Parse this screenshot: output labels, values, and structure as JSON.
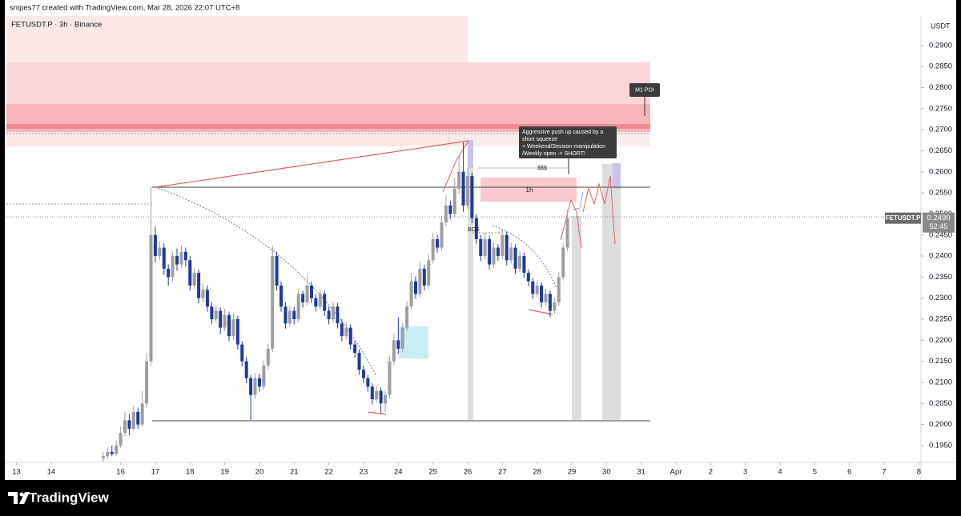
{
  "header": {
    "credit": "snipes77 created with TradingView.com, Mar 28, 2026 22:07 UTC+8",
    "symbol": "FETUSDT.P · 3h · Binance"
  },
  "footer": {
    "brand": "TradingView"
  },
  "chart_data": {
    "type": "candlestick",
    "currency": "USDT",
    "up_color": "#9e9e9e",
    "down_color": "#1e3a9e",
    "xlim": [
      12.71,
      39.06
    ],
    "ylim": [
      0.191,
      0.297
    ],
    "xticks": [
      13,
      14,
      16,
      17,
      18,
      19,
      20,
      21,
      22,
      23,
      24,
      25,
      26,
      27,
      28,
      29,
      30,
      31,
      {
        "value": 32,
        "label": "Apr"
      },
      {
        "value": 33,
        "label": "2"
      },
      {
        "value": 34,
        "label": "3"
      },
      {
        "value": 35,
        "label": "4"
      },
      {
        "value": 36,
        "label": "5"
      },
      {
        "value": 37,
        "label": "6"
      },
      {
        "value": 38,
        "label": "7"
      },
      {
        "value": 39,
        "label": "8"
      }
    ],
    "yticks": [
      {
        "value": 0.195,
        "label": "0.1950"
      },
      {
        "value": 0.2,
        "label": "0.2000"
      },
      {
        "value": 0.205,
        "label": "0.2050"
      },
      {
        "value": 0.21,
        "label": "0.2100"
      },
      {
        "value": 0.215,
        "label": "0.2150"
      },
      {
        "value": 0.22,
        "label": "0.2200"
      },
      {
        "value": 0.225,
        "label": "0.2250"
      },
      {
        "value": 0.23,
        "label": "0.2300"
      },
      {
        "value": 0.235,
        "label": "0.2350"
      },
      {
        "value": 0.24,
        "label": "0.2400"
      },
      {
        "value": 0.245,
        "label": "0.2450"
      },
      {
        "value": 0.25,
        "label": "0.2500"
      },
      {
        "value": 0.255,
        "label": "0.2550"
      },
      {
        "value": 0.26,
        "label": "0.2600"
      },
      {
        "value": 0.265,
        "label": "0.2650"
      },
      {
        "value": 0.27,
        "label": "0.2700"
      },
      {
        "value": 0.275,
        "label": "0.2750"
      },
      {
        "value": 0.28,
        "label": "0.2800"
      },
      {
        "value": 0.285,
        "label": "0.2850"
      },
      {
        "value": 0.29,
        "label": "0.2900"
      }
    ],
    "price_tag": {
      "symbol": "FETUSDT.P",
      "value": 0.249,
      "label": "0.2490",
      "countdown": "52:45"
    },
    "annotations": {
      "poi": "M1 POI",
      "note": [
        "Aggressive push up caused by a",
        "short squeeze",
        "+ Weekend/Session manipulation",
        "/Weekly open -> SHORT!"
      ],
      "liquidity": "$$$",
      "zone": "1h",
      "bos": "BOS"
    },
    "x": [
      15.5,
      15.625,
      15.75,
      15.875,
      16,
      16.125,
      16.25,
      16.375,
      16.5,
      16.625,
      16.75,
      16.875,
      17,
      17.125,
      17.25,
      17.375,
      17.5,
      17.625,
      17.75,
      17.875,
      18,
      18.125,
      18.25,
      18.375,
      18.5,
      18.625,
      18.75,
      18.875,
      19,
      19.125,
      19.25,
      19.375,
      19.5,
      19.625,
      19.75,
      19.875,
      20,
      20.125,
      20.25,
      20.375,
      20.5,
      20.625,
      20.75,
      20.875,
      21,
      21.125,
      21.25,
      21.375,
      21.5,
      21.625,
      21.75,
      21.875,
      22,
      22.125,
      22.25,
      22.375,
      22.5,
      22.625,
      22.75,
      22.875,
      23,
      23.125,
      23.25,
      23.375,
      23.5,
      23.625,
      23.75,
      23.875,
      24,
      24.125,
      24.25,
      24.375,
      24.5,
      24.625,
      24.75,
      24.875,
      25,
      25.125,
      25.25,
      25.375,
      25.5,
      25.625,
      25.75,
      25.875,
      26,
      26.125,
      26.25,
      26.375,
      26.5,
      26.625,
      26.75,
      26.875,
      27,
      27.125,
      27.25,
      27.375,
      27.5,
      27.625,
      27.75,
      27.875,
      28,
      28.125,
      28.25,
      28.375,
      28.5,
      28.625,
      28.75,
      28.875
    ],
    "ohlc": [
      [
        0.192,
        0.1935,
        0.1912,
        0.1925
      ],
      [
        0.1925,
        0.1945,
        0.1918,
        0.1935
      ],
      [
        0.1935,
        0.195,
        0.1925,
        0.193
      ],
      [
        0.193,
        0.1962,
        0.1926,
        0.195
      ],
      [
        0.195,
        0.1995,
        0.1945,
        0.198
      ],
      [
        0.198,
        0.203,
        0.1972,
        0.201
      ],
      [
        0.201,
        0.2025,
        0.1975,
        0.199
      ],
      [
        0.199,
        0.2045,
        0.1985,
        0.203
      ],
      [
        0.203,
        0.204,
        0.199,
        0.2
      ],
      [
        0.2,
        0.208,
        0.1995,
        0.205
      ],
      [
        0.205,
        0.217,
        0.204,
        0.215
      ],
      [
        0.215,
        0.2565,
        0.214,
        0.245
      ],
      [
        0.245,
        0.247,
        0.2385,
        0.24
      ],
      [
        0.24,
        0.2435,
        0.239,
        0.242
      ],
      [
        0.242,
        0.243,
        0.2355,
        0.237
      ],
      [
        0.237,
        0.238,
        0.233,
        0.235
      ],
      [
        0.235,
        0.2412,
        0.234,
        0.24
      ],
      [
        0.24,
        0.2418,
        0.2365,
        0.238
      ],
      [
        0.238,
        0.2425,
        0.2372,
        0.241
      ],
      [
        0.241,
        0.242,
        0.2375,
        0.239
      ],
      [
        0.239,
        0.24,
        0.2318,
        0.233
      ],
      [
        0.233,
        0.2372,
        0.2322,
        0.236
      ],
      [
        0.236,
        0.2368,
        0.2288,
        0.23
      ],
      [
        0.23,
        0.2335,
        0.229,
        0.232
      ],
      [
        0.232,
        0.233,
        0.2268,
        0.228
      ],
      [
        0.228,
        0.229,
        0.2238,
        0.225
      ],
      [
        0.225,
        0.2282,
        0.2242,
        0.227
      ],
      [
        0.227,
        0.2278,
        0.2215,
        0.223
      ],
      [
        0.223,
        0.2275,
        0.2222,
        0.226
      ],
      [
        0.226,
        0.2268,
        0.2198,
        0.221
      ],
      [
        0.221,
        0.2262,
        0.22,
        0.225
      ],
      [
        0.225,
        0.2258,
        0.2178,
        0.219
      ],
      [
        0.219,
        0.2198,
        0.2138,
        0.215
      ],
      [
        0.215,
        0.216,
        0.2098,
        0.211
      ],
      [
        0.211,
        0.2118,
        0.201,
        0.207
      ],
      [
        0.207,
        0.2122,
        0.206,
        0.211
      ],
      [
        0.211,
        0.212,
        0.2078,
        0.209
      ],
      [
        0.209,
        0.2152,
        0.2082,
        0.214
      ],
      [
        0.214,
        0.2192,
        0.213,
        0.218
      ],
      [
        0.218,
        0.2425,
        0.2172,
        0.24
      ],
      [
        0.24,
        0.241,
        0.2318,
        0.233
      ],
      [
        0.233,
        0.234,
        0.2268,
        0.228
      ],
      [
        0.228,
        0.229,
        0.2228,
        0.224
      ],
      [
        0.224,
        0.2282,
        0.2232,
        0.227
      ],
      [
        0.227,
        0.228,
        0.2238,
        0.225
      ],
      [
        0.225,
        0.2322,
        0.2242,
        0.231
      ],
      [
        0.231,
        0.2318,
        0.2278,
        0.229
      ],
      [
        0.229,
        0.2355,
        0.2282,
        0.233
      ],
      [
        0.233,
        0.234,
        0.2288,
        0.23
      ],
      [
        0.23,
        0.231,
        0.2268,
        0.228
      ],
      [
        0.228,
        0.2322,
        0.2272,
        0.231
      ],
      [
        0.231,
        0.2318,
        0.2258,
        0.227
      ],
      [
        0.227,
        0.228,
        0.2238,
        0.225
      ],
      [
        0.225,
        0.2292,
        0.2242,
        0.228
      ],
      [
        0.228,
        0.2288,
        0.2228,
        0.224
      ],
      [
        0.224,
        0.225,
        0.2198,
        0.221
      ],
      [
        0.221,
        0.2242,
        0.2202,
        0.223
      ],
      [
        0.223,
        0.2238,
        0.2178,
        0.219
      ],
      [
        0.219,
        0.2198,
        0.2158,
        0.217
      ],
      [
        0.217,
        0.2178,
        0.2118,
        0.213
      ],
      [
        0.213,
        0.214,
        0.2098,
        0.211
      ],
      [
        0.211,
        0.2118,
        0.2078,
        0.209
      ],
      [
        0.209,
        0.2098,
        0.2048,
        0.206
      ],
      [
        0.206,
        0.2092,
        0.2052,
        0.208
      ],
      [
        0.208,
        0.2088,
        0.2025,
        0.205
      ],
      [
        0.205,
        0.2082,
        0.203,
        0.207
      ],
      [
        0.207,
        0.2162,
        0.2062,
        0.215
      ],
      [
        0.215,
        0.2215,
        0.2142,
        0.22
      ],
      [
        0.22,
        0.2255,
        0.2168,
        0.218
      ],
      [
        0.218,
        0.2242,
        0.2172,
        0.223
      ],
      [
        0.223,
        0.2292,
        0.2222,
        0.228
      ],
      [
        0.228,
        0.236,
        0.2272,
        0.234
      ],
      [
        0.234,
        0.2352,
        0.2298,
        0.231
      ],
      [
        0.231,
        0.2385,
        0.2302,
        0.237
      ],
      [
        0.237,
        0.2378,
        0.2318,
        0.233
      ],
      [
        0.233,
        0.2405,
        0.2322,
        0.239
      ],
      [
        0.239,
        0.2455,
        0.2382,
        0.244
      ],
      [
        0.244,
        0.245,
        0.2408,
        0.242
      ],
      [
        0.242,
        0.2495,
        0.2412,
        0.248
      ],
      [
        0.248,
        0.2545,
        0.2472,
        0.252
      ],
      [
        0.252,
        0.2532,
        0.2488,
        0.25
      ],
      [
        0.25,
        0.2585,
        0.2492,
        0.256
      ],
      [
        0.256,
        0.264,
        0.2548,
        0.26
      ],
      [
        0.26,
        0.267,
        0.2505,
        0.252
      ],
      [
        0.252,
        0.261,
        0.2512,
        0.259
      ],
      [
        0.259,
        0.2598,
        0.2478,
        0.249
      ],
      [
        0.249,
        0.25,
        0.2428,
        0.244
      ],
      [
        0.244,
        0.245,
        0.2388,
        0.24
      ],
      [
        0.24,
        0.2455,
        0.2392,
        0.244
      ],
      [
        0.244,
        0.2448,
        0.2368,
        0.238
      ],
      [
        0.238,
        0.2432,
        0.2372,
        0.242
      ],
      [
        0.242,
        0.2428,
        0.2388,
        0.24
      ],
      [
        0.24,
        0.2465,
        0.2392,
        0.245
      ],
      [
        0.245,
        0.2458,
        0.2378,
        0.239
      ],
      [
        0.239,
        0.2432,
        0.2382,
        0.242
      ],
      [
        0.242,
        0.2428,
        0.2358,
        0.237
      ],
      [
        0.237,
        0.2412,
        0.2362,
        0.24
      ],
      [
        0.24,
        0.2408,
        0.2348,
        0.236
      ],
      [
        0.236,
        0.2368,
        0.2328,
        0.234
      ],
      [
        0.234,
        0.2348,
        0.2298,
        0.231
      ],
      [
        0.231,
        0.2342,
        0.2302,
        0.233
      ],
      [
        0.233,
        0.2338,
        0.2278,
        0.229
      ],
      [
        0.229,
        0.2322,
        0.2282,
        0.231
      ],
      [
        0.231,
        0.2318,
        0.2255,
        0.227
      ],
      [
        0.227,
        0.2302,
        0.2262,
        0.229
      ],
      [
        0.229,
        0.2362,
        0.2282,
        0.235
      ],
      [
        0.235,
        0.2432,
        0.2342,
        0.242
      ],
      [
        0.242,
        0.251,
        0.2412,
        0.249
      ]
    ]
  }
}
